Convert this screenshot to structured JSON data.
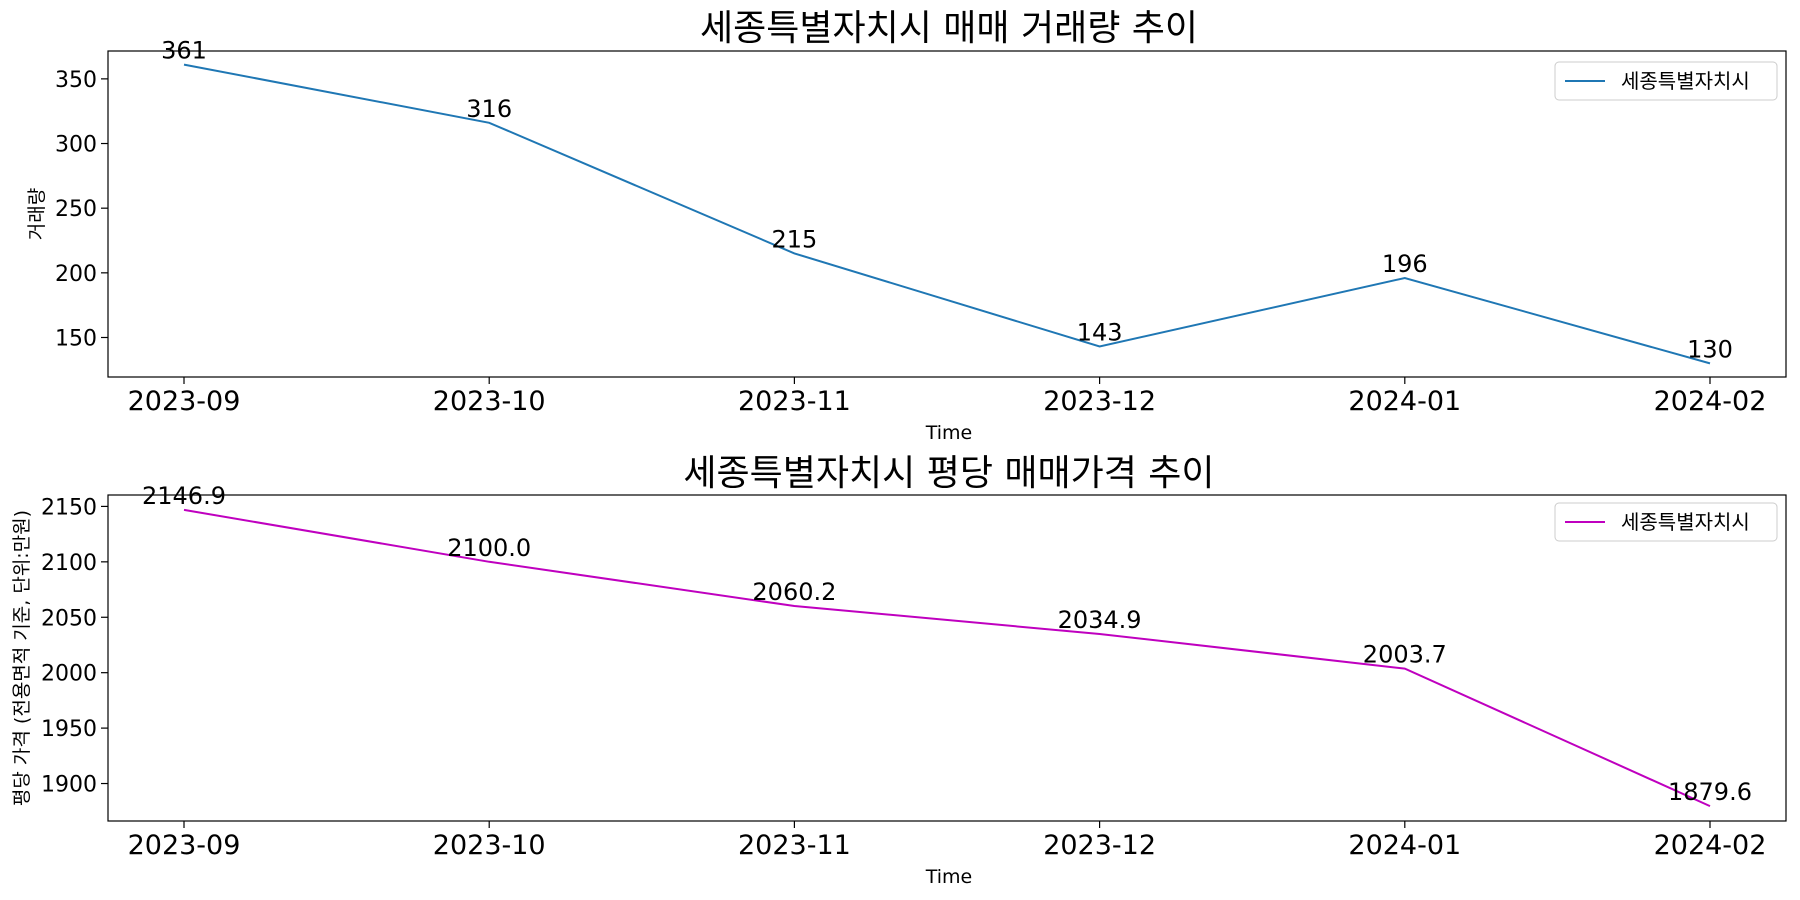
{
  "chart_data": [
    {
      "type": "line",
      "title": "세종특별자치시 매매 거래량 추이",
      "xlabel": "Time",
      "ylabel": "거래량",
      "categories": [
        "2023-09",
        "2023-10",
        "2023-11",
        "2023-12",
        "2024-01",
        "2024-02"
      ],
      "series": [
        {
          "name": "세종특별자치시",
          "color": "#1f77b4",
          "values": [
            361,
            316,
            215,
            143,
            196,
            130
          ]
        }
      ],
      "data_labels": [
        "361",
        "316",
        "215",
        "143",
        "196",
        "130"
      ],
      "yticks": [
        150,
        200,
        250,
        300,
        350
      ],
      "ylim": [
        119.45,
        371.55
      ],
      "grid": false,
      "legend": "top-right"
    },
    {
      "type": "line",
      "title": "세종특별자치시 평당 매매가격 추이",
      "xlabel": "Time",
      "ylabel": "평당 가격 (전용면적 기준, 단위:만원)",
      "categories": [
        "2023-09",
        "2023-10",
        "2023-11",
        "2023-12",
        "2024-01",
        "2024-02"
      ],
      "series": [
        {
          "name": "세종특별자치시",
          "color": "#bf00bf",
          "values": [
            2146.9,
            2100.0,
            2060.2,
            2034.9,
            2003.7,
            1879.6
          ]
        }
      ],
      "data_labels": [
        "2146.9",
        "2100.0",
        "2060.2",
        "2034.9",
        "2003.7",
        "1879.6"
      ],
      "yticks": [
        1900,
        1950,
        2000,
        2050,
        2100,
        2150
      ],
      "ylim": [
        1866.2,
        2160.3
      ],
      "grid": false,
      "legend": "top-right"
    }
  ]
}
